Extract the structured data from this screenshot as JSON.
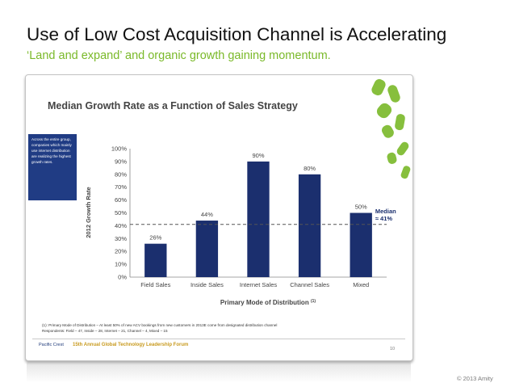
{
  "slide": {
    "title": "Use of Low Cost Acquisition Channel is Accelerating",
    "subtitle": "‘Land and expand’ and organic growth gaining momentum.",
    "copyright": "© 2013 Amity"
  },
  "embedded": {
    "side_note": "Across the entire group, companies which mainly use internet distribution are realizing the highest growth rates.",
    "footnote_line1": "(1): Primary Mode of Distribution – At least 50% of new ACV bookings from new customers in 2013E come from designated distribution channel",
    "footnote_line2": "Respondents: Field – 47, Inside – 28, Internet – 21, Channel – 4, Mixed – 15",
    "logo_text": "Pacific Crest",
    "forum_text": "15th Annual Global Technology Leadership Forum",
    "page_number": "10"
  },
  "colors": {
    "bar": "#1b2f6e",
    "accent_green": "#7ab929",
    "median_line": "#555555",
    "title_text": "#444444"
  },
  "chart_data": {
    "type": "bar",
    "title": "Median Growth Rate as a Function of Sales Strategy",
    "categories": [
      "Field Sales",
      "Inside Sales",
      "Internet Sales",
      "Channel Sales",
      "Mixed"
    ],
    "values": [
      26,
      44,
      90,
      80,
      50
    ],
    "value_labels": [
      "26%",
      "44%",
      "90%",
      "80%",
      "50%"
    ],
    "xlabel": "Primary Mode of Distribution",
    "xlabel_superscript": "(1)",
    "ylabel": "2012 Growth Rate",
    "ylim": [
      0,
      100
    ],
    "yticks": [
      "0%",
      "10%",
      "20%",
      "30%",
      "40%",
      "50%",
      "60%",
      "70%",
      "80%",
      "90%",
      "100%"
    ],
    "median_value": 41,
    "median_label_line1": "Median",
    "median_label_line2": "≈ 41%",
    "grid": false
  }
}
